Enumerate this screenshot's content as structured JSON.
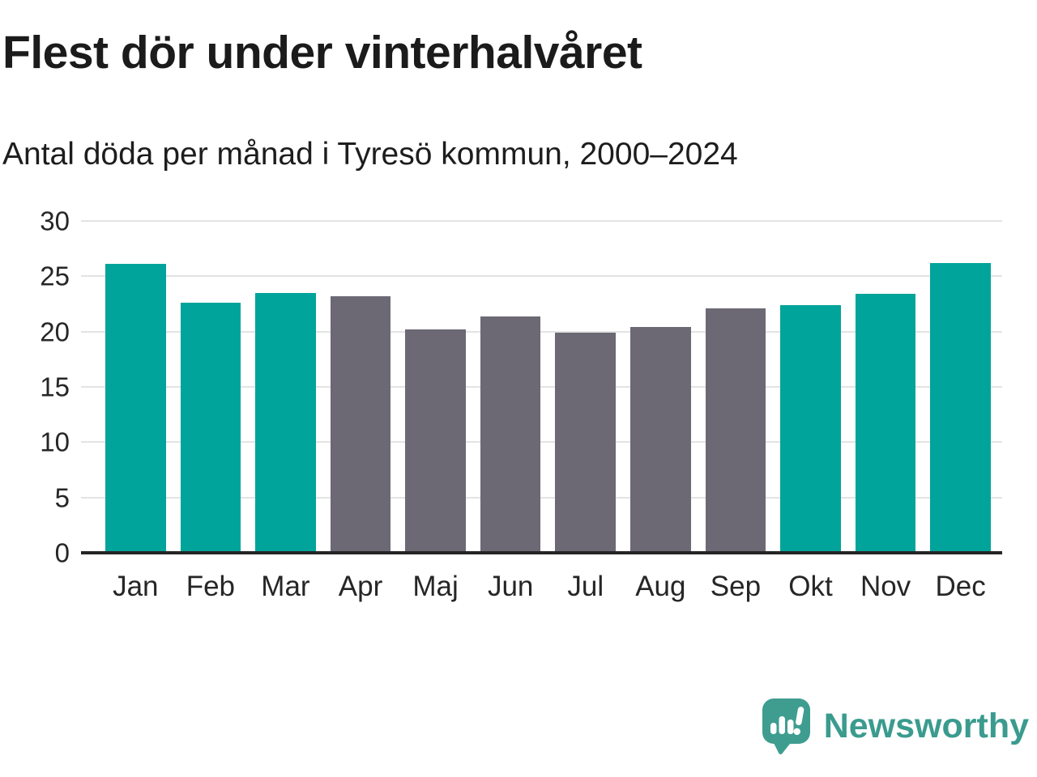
{
  "header": {
    "title": "Flest dör under vinterhalvåret",
    "subtitle": "Antal döda per månad i Tyresö kommun, 2000–2024"
  },
  "chart_data": {
    "type": "bar",
    "title": "Flest dör under vinterhalvåret",
    "subtitle": "Antal döda per månad i Tyresö kommun, 2000–2024",
    "categories": [
      "Jan",
      "Feb",
      "Mar",
      "Apr",
      "Maj",
      "Jun",
      "Jul",
      "Aug",
      "Sep",
      "Okt",
      "Nov",
      "Dec"
    ],
    "values": [
      26.1,
      22.6,
      23.5,
      23.2,
      20.2,
      21.4,
      19.9,
      20.4,
      22.1,
      22.4,
      23.4,
      26.2
    ],
    "bar_groups": [
      "winter",
      "winter",
      "winter",
      "summer",
      "summer",
      "summer",
      "summer",
      "summer",
      "summer",
      "winter",
      "winter",
      "winter"
    ],
    "palette": {
      "winter": "#00a49a",
      "summer": "#6c6975"
    },
    "xlabel": "",
    "ylabel": "",
    "ylim": [
      0,
      30
    ],
    "yticks": [
      0,
      5,
      10,
      15,
      20,
      25,
      30
    ],
    "grid": "horizontal",
    "legend": "none",
    "colors": {
      "gridline": "#e3e3e3",
      "axis_line": "#252525",
      "tick_text": "#262626",
      "title_text": "#1b1b1b"
    }
  },
  "footer": {
    "brand": "Newsworthy",
    "brand_color": "#3a9b8e",
    "logo_icon": "speech-bubble-bar-chart-exclamation"
  }
}
